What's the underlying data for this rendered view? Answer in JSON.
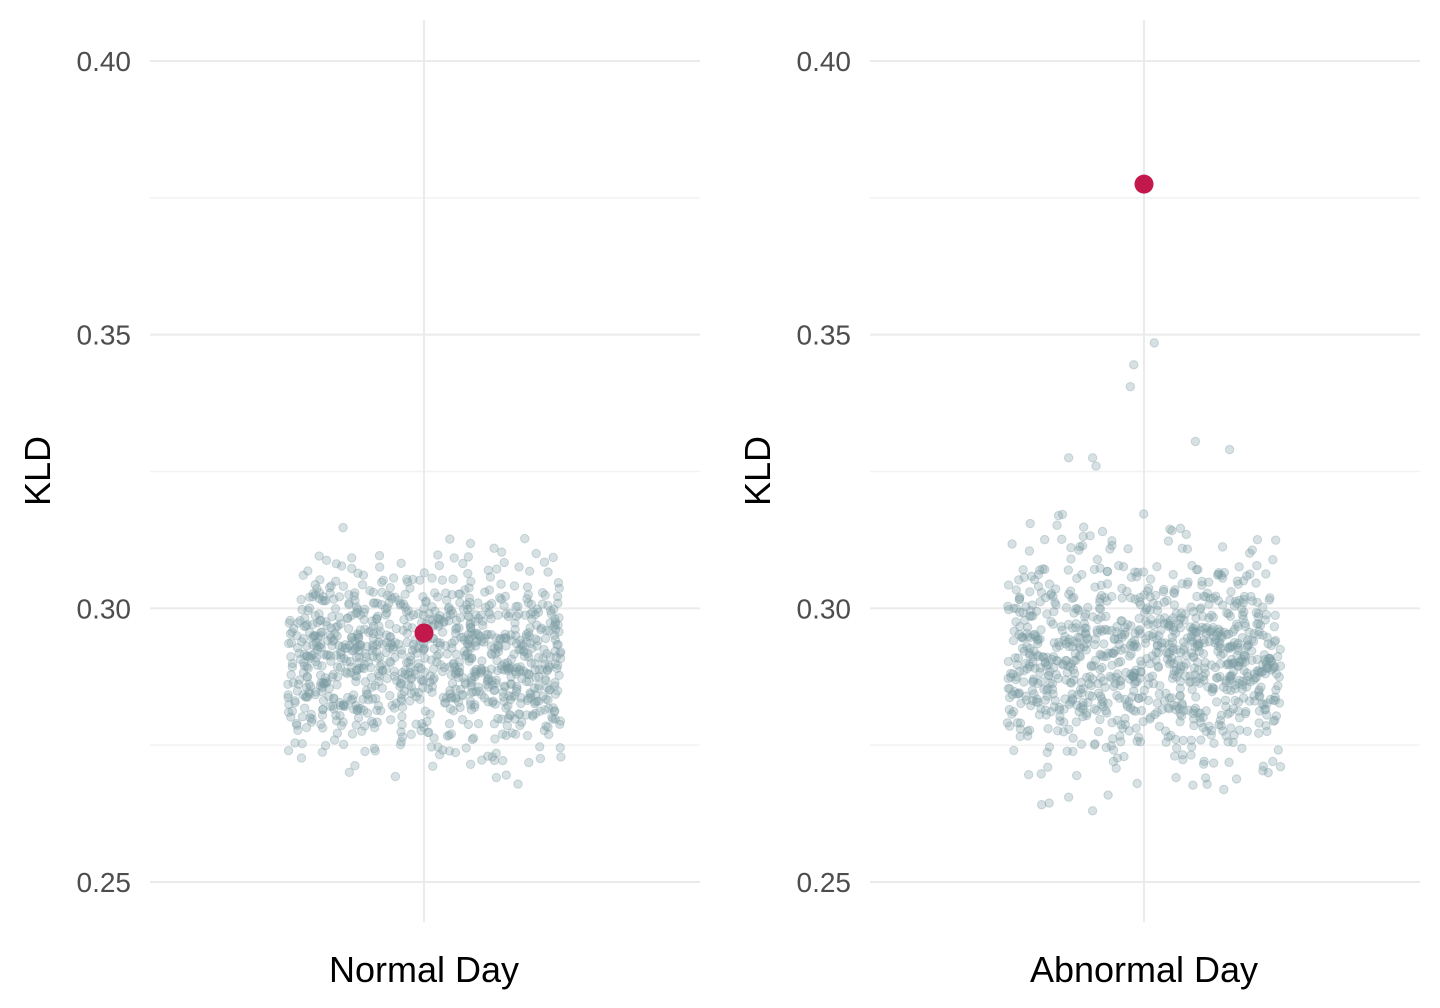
{
  "chart_data": [
    {
      "type": "scatter",
      "subtype": "jitter-strip",
      "title": "",
      "xlabel": "",
      "ylabel": "KLD",
      "categories": [
        "Normal Day"
      ],
      "ylim": [
        0.2425,
        0.4075
      ],
      "yticks": [
        0.25,
        0.3,
        0.35,
        0.4
      ],
      "ytick_labels": [
        "0.25",
        "0.30",
        "0.35",
        "0.40"
      ],
      "grid": true,
      "background_points": {
        "count": 1000,
        "color": "#7a9aa3",
        "description_of_spread": "jittered distribution",
        "y_range": [
          0.265,
          0.321
        ],
        "center": 0.291,
        "jitter_width": 0.4
      },
      "highlight": {
        "x": "Normal Day",
        "y": 0.2955,
        "color": "#c2184b"
      }
    },
    {
      "type": "scatter",
      "subtype": "jitter-strip",
      "title": "",
      "xlabel": "",
      "ylabel": "KLD",
      "categories": [
        "Abnormal Day"
      ],
      "ylim": [
        0.2425,
        0.4075
      ],
      "yticks": [
        0.25,
        0.3,
        0.35,
        0.4
      ],
      "ytick_labels": [
        "0.25",
        "0.30",
        "0.35",
        "0.40"
      ],
      "grid": true,
      "background_points": {
        "count": 1000,
        "color": "#7a9aa3",
        "y_range": [
          0.263,
          0.349
        ],
        "center": 0.291,
        "jitter_width": 0.4,
        "notable_outliers": [
          {
            "x_offset": -0.03,
            "y": 0.3445
          },
          {
            "x_offset": -0.04,
            "y": 0.3405
          },
          {
            "x_offset": 0.03,
            "y": 0.3485
          },
          {
            "x_offset": 0.15,
            "y": 0.3305
          },
          {
            "x_offset": 0.25,
            "y": 0.329
          },
          {
            "x_offset": -0.15,
            "y": 0.3275
          },
          {
            "x_offset": -0.22,
            "y": 0.3275
          },
          {
            "x_offset": -0.14,
            "y": 0.326
          },
          {
            "x_offset": -0.02,
            "y": 0.268
          },
          {
            "x_offset": -0.15,
            "y": 0.263
          },
          {
            "x_offset": -0.22,
            "y": 0.2655
          }
        ]
      },
      "highlight": {
        "x": "Abnormal Day",
        "y": 0.3775,
        "color": "#c2184b"
      }
    }
  ]
}
